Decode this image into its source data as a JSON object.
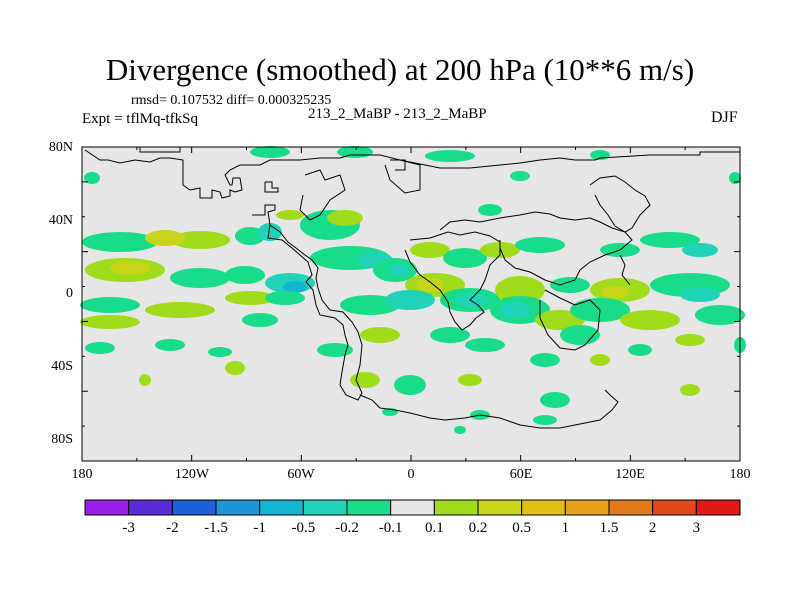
{
  "title": "Divergence (smoothed) at 200 hPa (10**6 m/s)",
  "stats_line": "rmsd= 0.107532  diff= 0.000325235",
  "left_subtitle": "Expt = tflMq-tfkSq",
  "center_subtitle": "213_2_MaBP - 213_2_MaBP",
  "right_subtitle": "DJF",
  "lat_ticks": [
    "80N",
    "40N",
    "0",
    "40S",
    "80S"
  ],
  "lon_ticks": [
    "180",
    "120W",
    "60W",
    "0",
    "60E",
    "120E",
    "180"
  ],
  "colorbar": {
    "labels": [
      "-3",
      "-2",
      "-1.5",
      "-1",
      "-0.5",
      "-0.2",
      "-0.1",
      "0.1",
      "0.2",
      "0.5",
      "1",
      "1.5",
      "2",
      "3"
    ],
    "colors": [
      "#9a1fe6",
      "#5a2cd8",
      "#1e5fd6",
      "#1e95d6",
      "#15b5d2",
      "#1fd2b8",
      "#18dc8a",
      "#e6e6e6",
      "#a0dc1c",
      "#c8d41a",
      "#e0c018",
      "#e6a01a",
      "#e07a1a",
      "#e04a1a",
      "#e01818"
    ]
  },
  "fill_colors": {
    "background": "#e6e6e6",
    "neg_weak": "#18dc8a",
    "neg_mid": "#1fd2b8",
    "neg_strong": "#15b5d2",
    "pos_weak": "#a0dc1c",
    "pos_mid": "#c8d41a",
    "pos_strong": "#e0c018"
  }
}
